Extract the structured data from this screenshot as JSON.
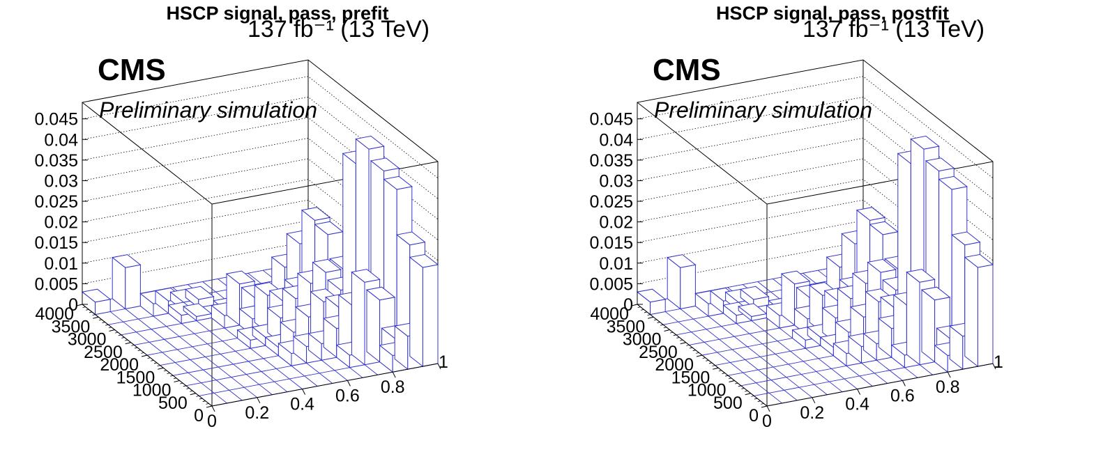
{
  "chart_data": [
    {
      "type": "lego3d",
      "title": "HSCP signal, pass, prefit",
      "lumi_label": "137 fb⁻¹ (13 TeV)",
      "experiment_label": "CMS",
      "status_label": "Preliminary simulation",
      "x_ticks": [
        "0",
        "0.2",
        "0.4",
        "0.6",
        "0.8",
        "1"
      ],
      "y_ticks": [
        "0",
        "500",
        "1000",
        "1500",
        "2000",
        "2500",
        "3000",
        "3500",
        "4000"
      ],
      "z_ticks": [
        "0",
        "0.005",
        "0.01",
        "0.015",
        "0.02",
        "0.025",
        "0.03",
        "0.035",
        "0.04",
        "0.045"
      ],
      "xlim": [
        0,
        1
      ],
      "ylim": [
        0,
        4000
      ],
      "zlim": [
        0,
        0.049
      ],
      "x_bins": 15,
      "y_bins": 10,
      "bar_color": "#3333cc",
      "bins": [
        {
          "i": 0,
          "j": 9,
          "z": 0.003
        },
        {
          "i": 2,
          "j": 9,
          "z": 0.01
        },
        {
          "i": 3,
          "j": 8,
          "z": 0.003
        },
        {
          "i": 4,
          "j": 8,
          "z": 0.003
        },
        {
          "i": 5,
          "j": 8,
          "z": 0.002
        },
        {
          "i": 6,
          "j": 8,
          "z": 0.002
        },
        {
          "i": 4,
          "j": 7,
          "z": 0.002
        },
        {
          "i": 5,
          "j": 7,
          "z": 0.001
        },
        {
          "i": 7,
          "j": 7,
          "z": 0.001
        },
        {
          "i": 6,
          "j": 6,
          "z": 0.003
        },
        {
          "i": 7,
          "j": 6,
          "z": 0.01
        },
        {
          "i": 8,
          "j": 6,
          "z": 0.006
        },
        {
          "i": 7,
          "j": 5,
          "z": 0.004
        },
        {
          "i": 8,
          "j": 5,
          "z": 0.009
        },
        {
          "i": 9,
          "j": 5,
          "z": 0.007
        },
        {
          "i": 7,
          "j": 4,
          "z": 0.002
        },
        {
          "i": 8,
          "j": 4,
          "z": 0.006
        },
        {
          "i": 9,
          "j": 4,
          "z": 0.01
        },
        {
          "i": 10,
          "j": 4,
          "z": 0.013
        },
        {
          "i": 7,
          "j": 3,
          "z": 0.002
        },
        {
          "i": 8,
          "j": 3,
          "z": 0.005
        },
        {
          "i": 9,
          "j": 3,
          "z": 0.008
        },
        {
          "i": 10,
          "j": 3,
          "z": 0.011
        },
        {
          "i": 11,
          "j": 3,
          "z": 0.009
        },
        {
          "i": 12,
          "j": 3,
          "z": 0.004
        },
        {
          "i": 9,
          "j": 2,
          "z": 0.004
        },
        {
          "i": 10,
          "j": 2,
          "z": 0.007
        },
        {
          "i": 11,
          "j": 2,
          "z": 0.012
        },
        {
          "i": 12,
          "j": 2,
          "z": 0.007
        },
        {
          "i": 13,
          "j": 2,
          "z": 0.003
        },
        {
          "i": 10,
          "j": 1,
          "z": 0.003
        },
        {
          "i": 11,
          "j": 1,
          "z": 0.02
        },
        {
          "i": 12,
          "j": 1,
          "z": 0.015
        },
        {
          "i": 13,
          "j": 1,
          "z": 0.005
        },
        {
          "i": 9,
          "j": 6,
          "z": 0.005
        },
        {
          "i": 10,
          "j": 6,
          "z": 0.012
        },
        {
          "i": 10,
          "j": 5,
          "z": 0.009
        },
        {
          "i": 11,
          "j": 5,
          "z": 0.007
        },
        {
          "i": 11,
          "j": 4,
          "z": 0.015
        },
        {
          "i": 12,
          "j": 4,
          "z": 0.01
        },
        {
          "i": 12,
          "j": 5,
          "z": 0.021
        },
        {
          "i": 11,
          "j": 6,
          "z": 0.017
        },
        {
          "i": 13,
          "j": 4,
          "z": 0.04
        },
        {
          "i": 12,
          "j": 6,
          "z": 0.022
        },
        {
          "i": 13,
          "j": 5,
          "z": 0.012
        },
        {
          "i": 13,
          "j": 3,
          "z": 0.046
        },
        {
          "i": 14,
          "j": 3,
          "z": 0.04
        },
        {
          "i": 14,
          "j": 2,
          "z": 0.038
        },
        {
          "i": 14,
          "j": 1,
          "z": 0.027
        },
        {
          "i": 13,
          "j": 0,
          "z": 0.008
        },
        {
          "i": 12,
          "j": 0,
          "z": 0.004
        },
        {
          "i": 14,
          "j": 0,
          "z": 0.024
        },
        {
          "i": 8,
          "j": 2,
          "z": 0.004
        },
        {
          "i": 6,
          "j": 4,
          "z": 0.002
        },
        {
          "i": 7,
          "j": 2,
          "z": 0.003
        }
      ]
    },
    {
      "type": "lego3d",
      "title": "HSCP signal, pass, postfit",
      "lumi_label": "137 fb⁻¹ (13 TeV)",
      "experiment_label": "CMS",
      "status_label": "Preliminary simulation",
      "x_ticks": [
        "0",
        "0.2",
        "0.4",
        "0.6",
        "0.8",
        "1"
      ],
      "y_ticks": [
        "0",
        "500",
        "1000",
        "1500",
        "2000",
        "2500",
        "3000",
        "3500",
        "4000"
      ],
      "z_ticks": [
        "0",
        "0.005",
        "0.01",
        "0.015",
        "0.02",
        "0.025",
        "0.03",
        "0.035",
        "0.04",
        "0.045"
      ],
      "xlim": [
        0,
        1
      ],
      "ylim": [
        0,
        4000
      ],
      "zlim": [
        0,
        0.049
      ],
      "x_bins": 15,
      "y_bins": 10,
      "bar_color": "#3333cc",
      "bins": [
        {
          "i": 0,
          "j": 9,
          "z": 0.003
        },
        {
          "i": 2,
          "j": 9,
          "z": 0.01
        },
        {
          "i": 3,
          "j": 8,
          "z": 0.003
        },
        {
          "i": 4,
          "j": 8,
          "z": 0.003
        },
        {
          "i": 5,
          "j": 8,
          "z": 0.002
        },
        {
          "i": 6,
          "j": 8,
          "z": 0.002
        },
        {
          "i": 4,
          "j": 7,
          "z": 0.002
        },
        {
          "i": 5,
          "j": 7,
          "z": 0.001
        },
        {
          "i": 7,
          "j": 7,
          "z": 0.001
        },
        {
          "i": 6,
          "j": 6,
          "z": 0.003
        },
        {
          "i": 7,
          "j": 6,
          "z": 0.01
        },
        {
          "i": 8,
          "j": 6,
          "z": 0.006
        },
        {
          "i": 7,
          "j": 5,
          "z": 0.004
        },
        {
          "i": 8,
          "j": 5,
          "z": 0.009
        },
        {
          "i": 9,
          "j": 5,
          "z": 0.007
        },
        {
          "i": 7,
          "j": 4,
          "z": 0.002
        },
        {
          "i": 8,
          "j": 4,
          "z": 0.006
        },
        {
          "i": 9,
          "j": 4,
          "z": 0.01
        },
        {
          "i": 10,
          "j": 4,
          "z": 0.013
        },
        {
          "i": 7,
          "j": 3,
          "z": 0.002
        },
        {
          "i": 8,
          "j": 3,
          "z": 0.005
        },
        {
          "i": 9,
          "j": 3,
          "z": 0.008
        },
        {
          "i": 10,
          "j": 3,
          "z": 0.011
        },
        {
          "i": 11,
          "j": 3,
          "z": 0.009
        },
        {
          "i": 12,
          "j": 3,
          "z": 0.004
        },
        {
          "i": 9,
          "j": 2,
          "z": 0.004
        },
        {
          "i": 10,
          "j": 2,
          "z": 0.007
        },
        {
          "i": 11,
          "j": 2,
          "z": 0.012
        },
        {
          "i": 12,
          "j": 2,
          "z": 0.007
        },
        {
          "i": 13,
          "j": 2,
          "z": 0.003
        },
        {
          "i": 10,
          "j": 1,
          "z": 0.003
        },
        {
          "i": 11,
          "j": 1,
          "z": 0.02
        },
        {
          "i": 12,
          "j": 1,
          "z": 0.015
        },
        {
          "i": 13,
          "j": 1,
          "z": 0.005
        },
        {
          "i": 9,
          "j": 6,
          "z": 0.005
        },
        {
          "i": 10,
          "j": 6,
          "z": 0.012
        },
        {
          "i": 10,
          "j": 5,
          "z": 0.009
        },
        {
          "i": 11,
          "j": 5,
          "z": 0.007
        },
        {
          "i": 11,
          "j": 4,
          "z": 0.015
        },
        {
          "i": 12,
          "j": 4,
          "z": 0.01
        },
        {
          "i": 12,
          "j": 5,
          "z": 0.021
        },
        {
          "i": 11,
          "j": 6,
          "z": 0.017
        },
        {
          "i": 13,
          "j": 4,
          "z": 0.04
        },
        {
          "i": 12,
          "j": 6,
          "z": 0.022
        },
        {
          "i": 13,
          "j": 5,
          "z": 0.012
        },
        {
          "i": 13,
          "j": 3,
          "z": 0.046
        },
        {
          "i": 14,
          "j": 3,
          "z": 0.04
        },
        {
          "i": 14,
          "j": 2,
          "z": 0.038
        },
        {
          "i": 14,
          "j": 1,
          "z": 0.027
        },
        {
          "i": 13,
          "j": 0,
          "z": 0.008
        },
        {
          "i": 12,
          "j": 0,
          "z": 0.004
        },
        {
          "i": 14,
          "j": 0,
          "z": 0.024
        },
        {
          "i": 8,
          "j": 2,
          "z": 0.004
        },
        {
          "i": 6,
          "j": 4,
          "z": 0.002
        },
        {
          "i": 7,
          "j": 2,
          "z": 0.003
        }
      ]
    }
  ]
}
